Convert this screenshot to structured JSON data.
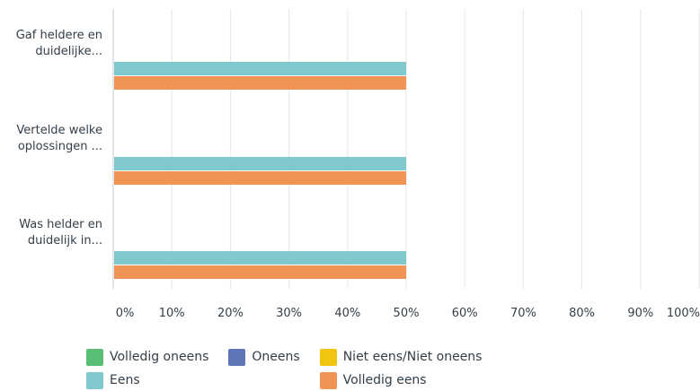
{
  "chart_data": {
    "type": "bar",
    "orientation": "horizontal",
    "categories": [
      [
        "Gaf heldere en",
        "duidelijke..."
      ],
      [
        "Vertelde welke",
        "oplossingen ..."
      ],
      [
        "Was helder en",
        "duidelijk in..."
      ]
    ],
    "series": [
      {
        "name": "Volledig oneens",
        "color": "#57be74",
        "values": [
          0,
          0,
          0
        ]
      },
      {
        "name": "Oneens",
        "color": "#6075b7",
        "values": [
          0,
          0,
          0
        ]
      },
      {
        "name": "Niet eens/Niet oneens",
        "color": "#f1c40f",
        "values": [
          0,
          0,
          0
        ]
      },
      {
        "name": "Eens",
        "color": "#7fc8cc",
        "values": [
          50,
          50,
          50
        ]
      },
      {
        "name": "Volledig eens",
        "color": "#f19354",
        "values": [
          50,
          50,
          50
        ]
      }
    ],
    "ticks": [
      "0%",
      "10%",
      "20%",
      "30%",
      "40%",
      "50%",
      "60%",
      "70%",
      "80%",
      "90%",
      "100%"
    ],
    "xlim": [
      0,
      100
    ],
    "grid": true,
    "legend": "bottom"
  }
}
